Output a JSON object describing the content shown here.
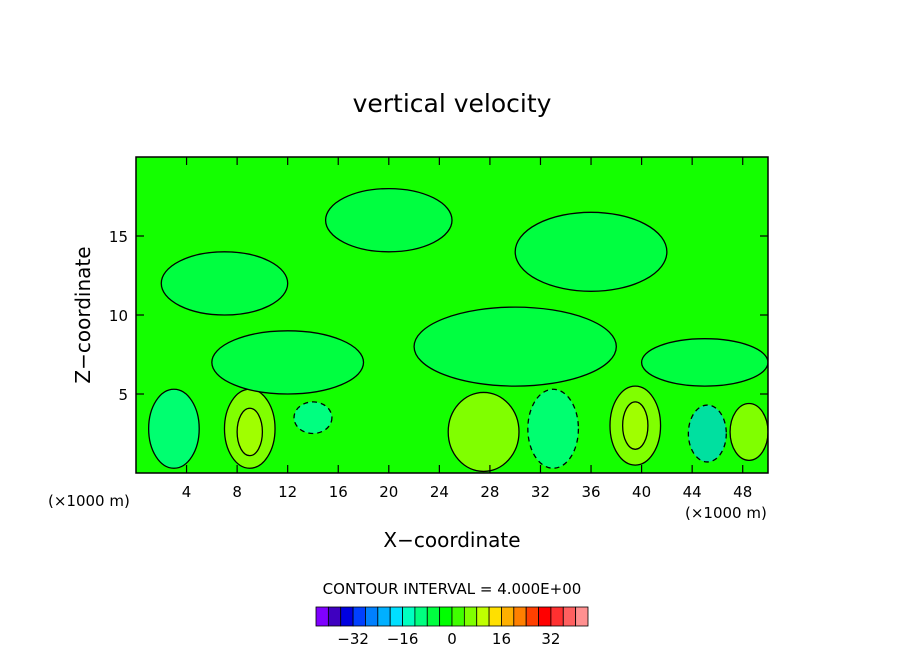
{
  "chart_data": {
    "type": "heatmap",
    "title": "vertical velocity",
    "xlabel": "X−coordinate",
    "ylabel": "Z−coordinate",
    "x_unit_left": "(×1000 m)",
    "x_unit_right": "(×1000 m)",
    "xlim": [
      0,
      50
    ],
    "ylim": [
      0,
      20
    ],
    "x_ticks": [
      4,
      8,
      12,
      16,
      20,
      24,
      28,
      32,
      36,
      40,
      44,
      48
    ],
    "y_ticks": [
      5,
      10,
      15
    ],
    "contour_interval_text": "CONTOUR INTERVAL = 4.000E+00",
    "colorbar": {
      "colors": [
        "#7f00ff",
        "#3f00c0",
        "#0000e0",
        "#0040ff",
        "#0080ff",
        "#00b0ff",
        "#00e0ff",
        "#00ffc0",
        "#00ff80",
        "#00ff40",
        "#00ff00",
        "#40ff00",
        "#80ff00",
        "#c0ff00",
        "#ffe000",
        "#ffb000",
        "#ff8000",
        "#ff4000",
        "#ff0000",
        "#ff3030",
        "#ff6060",
        "#ff9090"
      ],
      "tick_labels": [
        "−32",
        "−16",
        "0",
        "16",
        "32"
      ],
      "tick_values": [
        -32,
        -16,
        0,
        16,
        32
      ],
      "vmin": -44,
      "vmax": 44
    },
    "base_color": "#14ff00",
    "fields": [
      {
        "x": 3,
        "y": 2.8,
        "rx": 2,
        "ry": 2.5,
        "value": 4,
        "color": "#00ff70"
      },
      {
        "x": 9,
        "y": 2.8,
        "rx": 2,
        "ry": 2.5,
        "value": 8,
        "color": "#80ff00"
      },
      {
        "x": 9,
        "y": 2.6,
        "rx": 1,
        "ry": 1.5,
        "value": 12,
        "color": "#a0ff00"
      },
      {
        "x": 14,
        "y": 3.5,
        "rx": 1.5,
        "ry": 1,
        "value": -4,
        "color": "#00ff80"
      },
      {
        "x": 27.5,
        "y": 2.6,
        "rx": 2.8,
        "ry": 2.5,
        "value": 8,
        "color": "#80ff00"
      },
      {
        "x": 33,
        "y": 2.8,
        "rx": 2,
        "ry": 2.5,
        "value": -4,
        "color": "#00ff70"
      },
      {
        "x": 39.5,
        "y": 3,
        "rx": 2,
        "ry": 2.5,
        "value": 8,
        "color": "#80ff00"
      },
      {
        "x": 39.5,
        "y": 3,
        "rx": 1,
        "ry": 1.5,
        "value": 12,
        "color": "#a0ff00"
      },
      {
        "x": 45.2,
        "y": 2.5,
        "rx": 1.5,
        "ry": 1.8,
        "value": -8,
        "color": "#00e0a0"
      },
      {
        "x": 48.5,
        "y": 2.6,
        "rx": 1.5,
        "ry": 1.8,
        "value": 4,
        "color": "#80ff00"
      },
      {
        "x": 12,
        "y": 7,
        "rx": 6,
        "ry": 2,
        "value": 0,
        "color": "#00ff40"
      },
      {
        "x": 30,
        "y": 8,
        "rx": 8,
        "ry": 2.5,
        "value": 0,
        "color": "#00ff40"
      },
      {
        "x": 45,
        "y": 7,
        "rx": 5,
        "ry": 1.5,
        "value": 0,
        "color": "#00ff40"
      },
      {
        "x": 20,
        "y": 16,
        "rx": 5,
        "ry": 2,
        "value": 0,
        "color": "#00ff40"
      },
      {
        "x": 36,
        "y": 14,
        "rx": 6,
        "ry": 2.5,
        "value": 0,
        "color": "#00ff40"
      },
      {
        "x": 7,
        "y": 12,
        "rx": 5,
        "ry": 2,
        "value": 0,
        "color": "#00ff40"
      }
    ]
  }
}
